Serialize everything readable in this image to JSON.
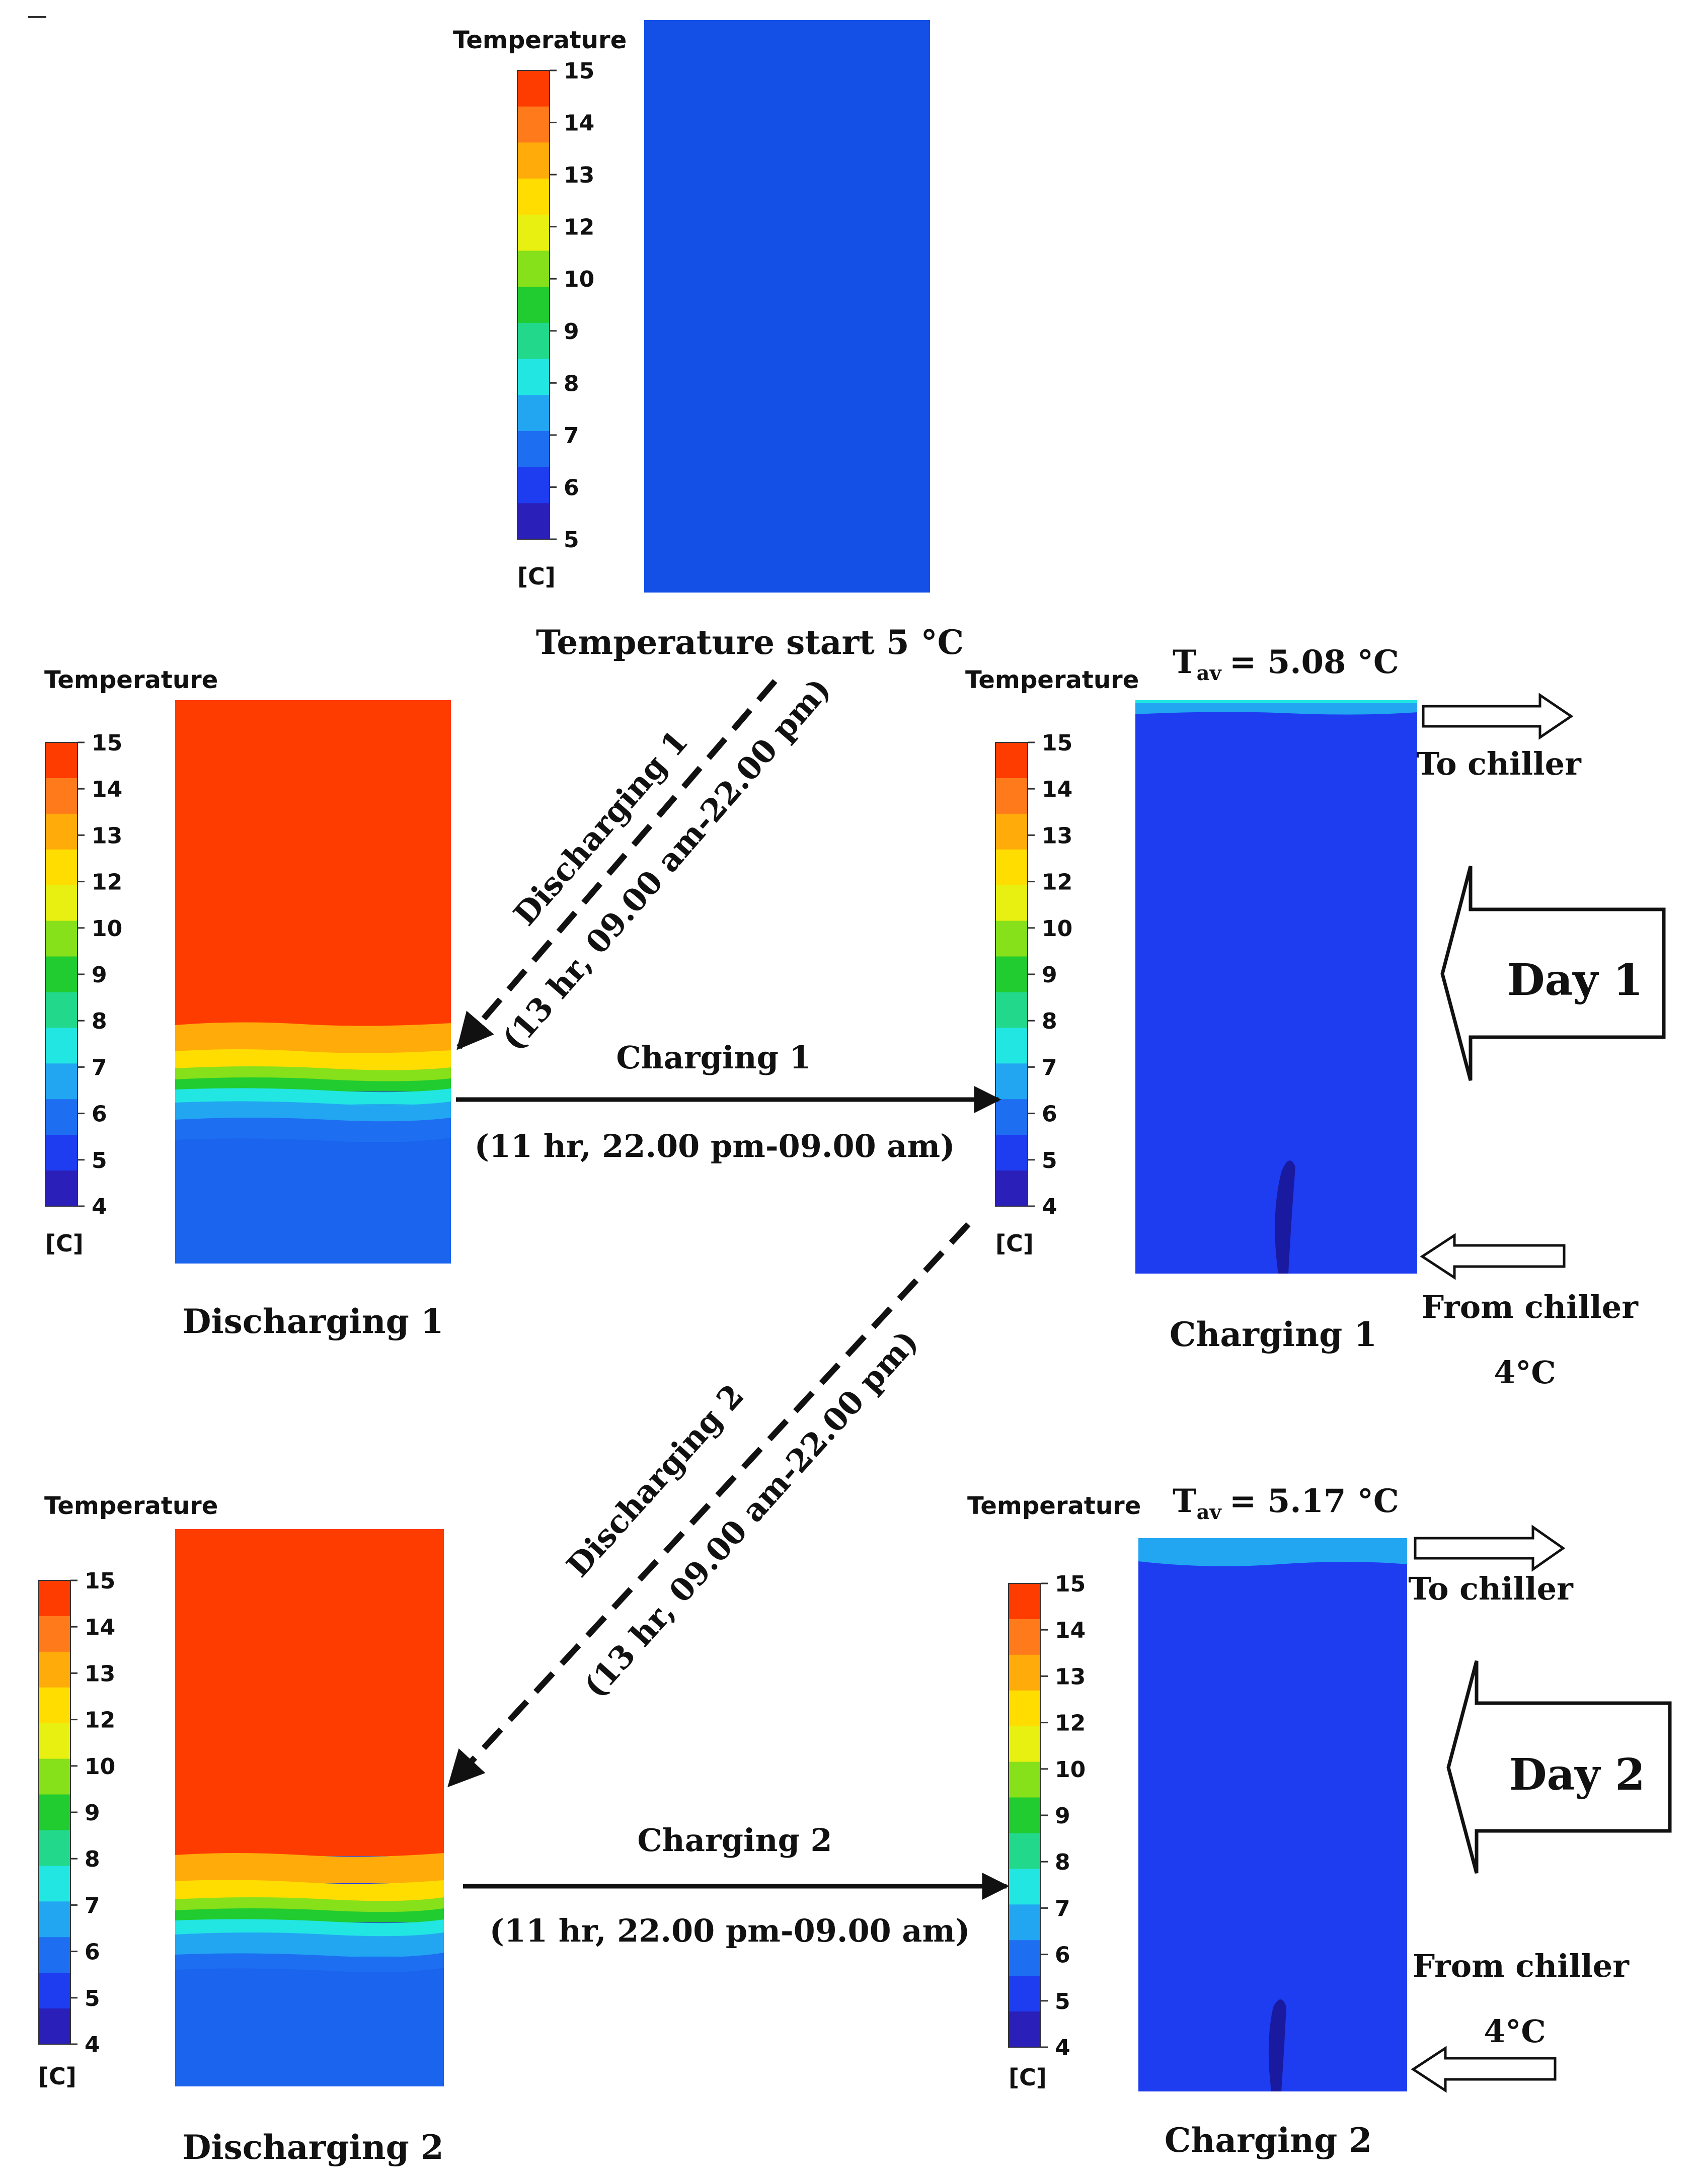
{
  "colors": {
    "scale": [
      "#2a1fb8",
      "#1e3cf0",
      "#1e6ef2",
      "#22a6f2",
      "#22e6e2",
      "#22d88a",
      "#20cc30",
      "#86e01a",
      "#e8f012",
      "#ffdd00",
      "#ffab0a",
      "#ff7a1a",
      "#ff3c00"
    ],
    "tank_blue": "#1450e6",
    "tank_cool": "#1a3ce0",
    "tank_hot": "#ff3c00",
    "tank_dark": "#1a1aa0"
  },
  "legend": {
    "title": "Temperature",
    "unit": "[C]",
    "ticks": [
      "15",
      "14",
      "13",
      "12",
      "10",
      "9",
      "8",
      "7",
      "6",
      "5"
    ],
    "ticks_full": [
      "15",
      "14",
      "13",
      "12",
      "10",
      "9",
      "8",
      "7",
      "6",
      "5",
      "4"
    ]
  },
  "start": {
    "caption": "Temperature start 5 °C"
  },
  "discharging_1": {
    "caption": "Discharging 1",
    "arrow_label": "Discharging 1",
    "arrow_time": "(13 hr, 09.00 am-22.00 pm)"
  },
  "charging_1": {
    "caption": "Charging 1",
    "arrow_label": "Charging 1",
    "arrow_time": "(11 hr, 22.00 pm-09.00 am)",
    "t_av": "T",
    "t_av_sub": "av",
    "t_av_value": "= 5.08 °C"
  },
  "discharging_2": {
    "caption": "Discharging 2",
    "arrow_label": "Discharging 2",
    "arrow_time": "(13 hr, 09.00 am-22.00 pm)"
  },
  "charging_2": {
    "caption": "Charging 2",
    "arrow_label": "Charging 2",
    "arrow_time": "(11 hr, 22.00 pm-09.00 am)",
    "t_av": "T",
    "t_av_sub": "av",
    "t_av_value": "= 5.17 °C"
  },
  "flow": {
    "to_chiller": "To chiller",
    "from_chiller": "From chiller",
    "inlet_temp": "4°C"
  },
  "days": {
    "day1": "Day 1",
    "day2": "Day 2"
  }
}
